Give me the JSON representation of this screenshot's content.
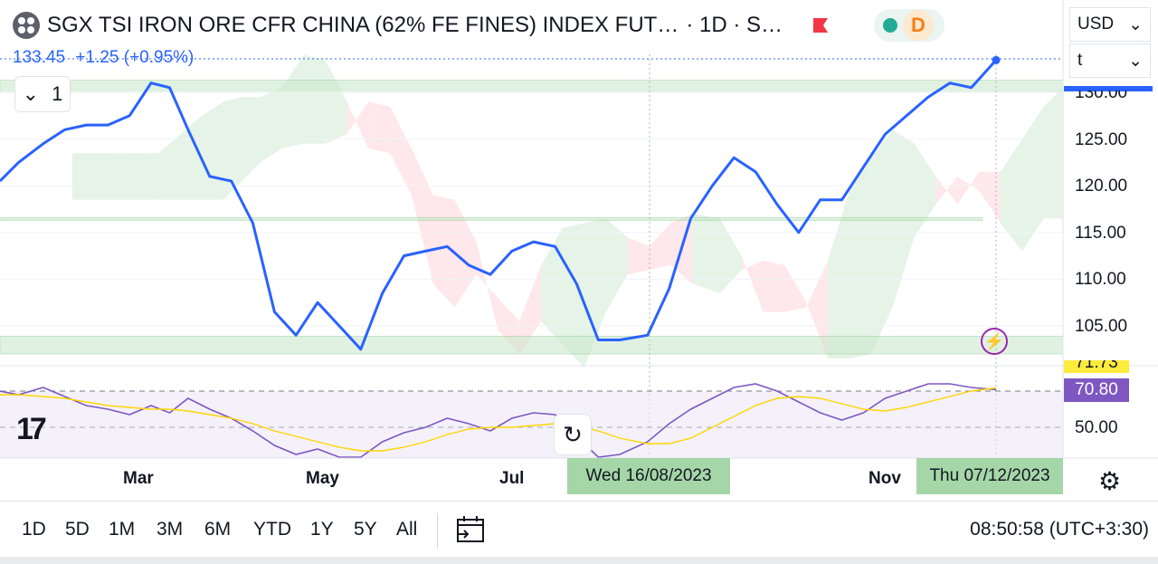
{
  "header": {
    "title": "SGX TSI IRON ORE CFR CHINA (62% FE FINES) INDEX FUT…",
    "meta": "· 1D · S…",
    "last_price": "133.45",
    "change": "+1.25 (+0.95%)",
    "market_status": "D",
    "currency": "USD",
    "unit": "t",
    "indicator_count": "1"
  },
  "price_axis": {
    "labels": [
      "130.00",
      "125.00",
      "120.00",
      "115.00",
      "110.00",
      "105.00"
    ]
  },
  "rsi_axis": {
    "labels": [
      "50.00"
    ],
    "current_label": "70.80",
    "ma_label": "71.73",
    "current_value": 70.8,
    "ma_value": 71.73
  },
  "time_axis": {
    "labels": [
      "Mar",
      "May",
      "Jul",
      "Nov"
    ],
    "crosshair_date": "Wed 16/08/2023",
    "last_date": "Thu 07/12/2023"
  },
  "timeframes": [
    "1D",
    "5D",
    "1M",
    "3M",
    "6M",
    "YTD",
    "1Y",
    "5Y",
    "All"
  ],
  "clock": "08:50:58 (UTC+3:30)",
  "icons": {
    "symbol": "symbol-icon",
    "flag": "flag-icon",
    "reset": "reset-icon",
    "calendar": "calendar-range-icon",
    "settings": "gear-icon",
    "logo": "tradingview-logo-icon"
  },
  "colors": {
    "price_line": "#2962ff",
    "rsi_line": "#7e57c2",
    "rsi_ma_line": "#ffd600",
    "cloud_bull": "#c8e6c9",
    "cloud_bear": "#ffcdd2",
    "support_zone": "#c8e6c9"
  },
  "chart_data": [
    {
      "type": "line",
      "title": "SGX TSI IRON ORE CFR CHINA (62% FE FINES) INDEX FUT…",
      "x_start": "2023-01-18",
      "x_end": "2023-12-07",
      "ylim": [
        101.5,
        136
      ],
      "y_ticks": [
        105,
        110,
        115,
        120,
        125,
        130
      ],
      "series": [
        {
          "type": "line",
          "x": [
            "2023-01-18",
            "2023-01-24",
            "2023-02-01",
            "2023-02-08",
            "2023-02-15",
            "2023-02-22",
            "2023-03-01",
            "2023-03-08",
            "2023-03-14",
            "2023-03-20",
            "2023-03-27",
            "2023-04-03",
            "2023-04-10",
            "2023-04-17",
            "2023-04-24",
            "2023-05-01",
            "2023-05-08",
            "2023-05-15",
            "2023-05-22",
            "2023-05-29",
            "2023-06-05",
            "2023-06-12",
            "2023-06-19",
            "2023-06-26",
            "2023-07-03",
            "2023-07-10",
            "2023-07-17",
            "2023-07-24",
            "2023-07-31",
            "2023-08-07",
            "2023-08-16",
            "2023-08-23",
            "2023-08-30",
            "2023-09-06",
            "2023-09-13",
            "2023-09-20",
            "2023-09-27",
            "2023-10-04",
            "2023-10-11",
            "2023-10-18",
            "2023-10-25",
            "2023-11-01",
            "2023-11-08",
            "2023-11-15",
            "2023-11-22",
            "2023-11-29",
            "2023-12-07"
          ],
          "values": [
            120.5,
            122.5,
            124.5,
            126.0,
            126.5,
            126.5,
            127.5,
            131.0,
            130.5,
            126.0,
            121.0,
            120.5,
            116.0,
            106.5,
            104.0,
            107.5,
            105.0,
            102.5,
            108.5,
            112.5,
            113.0,
            113.5,
            111.5,
            110.5,
            113.0,
            114.0,
            113.5,
            109.5,
            103.5,
            103.5,
            104.0,
            109.0,
            116.5,
            120.0,
            123.0,
            121.5,
            118.0,
            115.0,
            118.5,
            118.5,
            122.0,
            125.5,
            127.5,
            129.5,
            131.0,
            130.5,
            133.45
          ]
        }
      ],
      "zones": [
        {
          "name": "upper",
          "from": 130.0,
          "to": 131.3
        },
        {
          "name": "middle",
          "from": 116.3,
          "to": 116.6
        },
        {
          "name": "lower",
          "from": 102.0,
          "to": 103.9
        }
      ]
    },
    {
      "type": "line",
      "title": "RSI",
      "ylim": [
        33,
        83
      ],
      "y_ticks": [
        50
      ],
      "bands": [
        30,
        70
      ],
      "series": [
        {
          "name": "RSI",
          "values": [
            70,
            68,
            72,
            67,
            62,
            60,
            57,
            62,
            58,
            66,
            60,
            55,
            48,
            40,
            35,
            38,
            33,
            30,
            42,
            47,
            50,
            55,
            52,
            48,
            55,
            58,
            57,
            45,
            33,
            35,
            42,
            52,
            60,
            66,
            72,
            74,
            70,
            64,
            58,
            54,
            58,
            66,
            70,
            74,
            74,
            72,
            70.8
          ]
        },
        {
          "name": "RSI MA",
          "values": [
            68,
            68,
            67,
            66,
            64,
            62,
            61,
            60,
            60,
            59,
            57,
            55,
            52,
            48,
            45,
            42,
            39,
            37,
            37,
            39,
            42,
            46,
            49,
            50,
            50,
            51,
            52,
            51,
            48,
            44,
            41,
            41,
            44,
            50,
            56,
            62,
            66,
            67,
            66,
            63,
            60,
            59,
            61,
            64,
            67,
            70,
            71.73
          ]
        }
      ]
    }
  ]
}
